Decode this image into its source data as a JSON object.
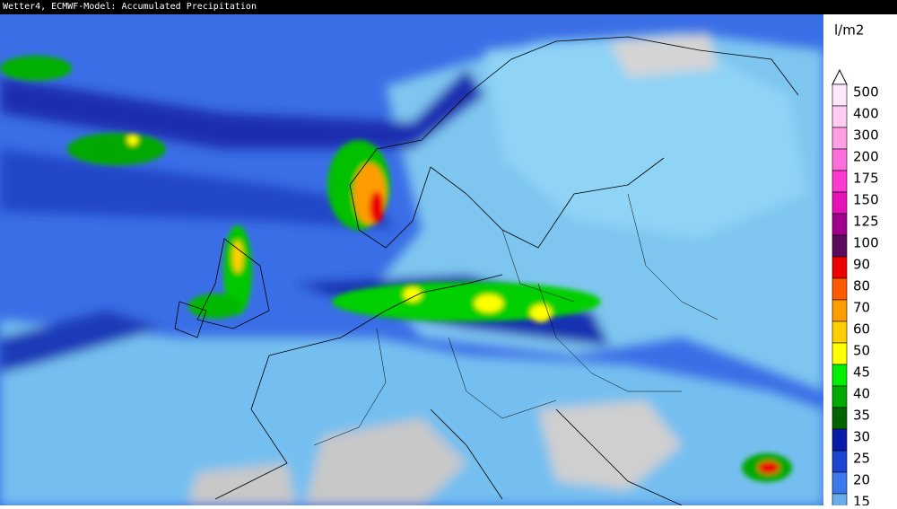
{
  "header": {
    "title": "Wetter4, ECMWF-Model: Accumulated Precipitation"
  },
  "legend": {
    "unit": "l/m2",
    "items": [
      {
        "label": 500,
        "color": "#fde8fb"
      },
      {
        "label": 400,
        "color": "#ffcdf3"
      },
      {
        "label": 300,
        "color": "#ff9fe6"
      },
      {
        "label": 200,
        "color": "#ff6fdc"
      },
      {
        "label": 175,
        "color": "#ff3ad0"
      },
      {
        "label": 150,
        "color": "#e610b8"
      },
      {
        "label": 125,
        "color": "#a0008c"
      },
      {
        "label": 100,
        "color": "#5c0a5e"
      },
      {
        "label": 90,
        "color": "#ee0000"
      },
      {
        "label": 80,
        "color": "#ff5a00"
      },
      {
        "label": 70,
        "color": "#ff9c00"
      },
      {
        "label": 60,
        "color": "#ffd000"
      },
      {
        "label": 50,
        "color": "#ffff00"
      },
      {
        "label": 45,
        "color": "#00ee00"
      },
      {
        "label": 40,
        "color": "#00a800"
      },
      {
        "label": 35,
        "color": "#006400"
      },
      {
        "label": 30,
        "color": "#0a1aa8"
      },
      {
        "label": 25,
        "color": "#1c44d2"
      },
      {
        "label": 20,
        "color": "#3c78ee"
      },
      {
        "label": 15,
        "color": "#6aaeee"
      }
    ]
  }
}
